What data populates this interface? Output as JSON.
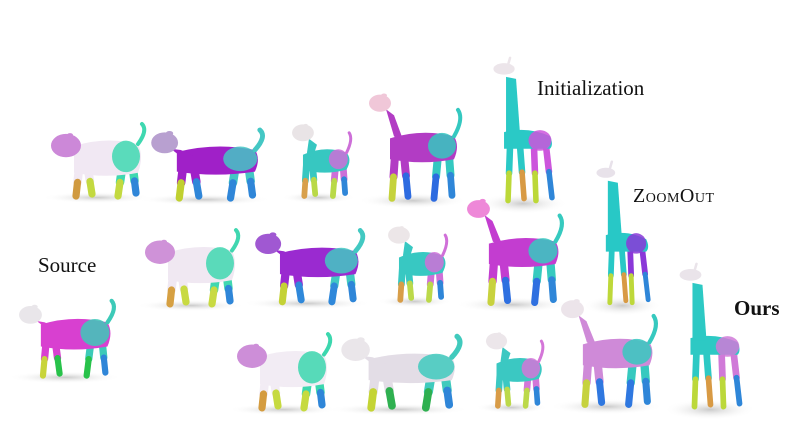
{
  "labels": {
    "source": "Source",
    "initialization": "Initialization",
    "zoomout": "ZoomOut",
    "ours": "Ours"
  },
  "colors": {
    "background": "#ffffff",
    "text": "#111111",
    "shadow": "#c9c9c9"
  },
  "rows": [
    {
      "method_label": "initialization",
      "shapes": [
        {
          "animal": "pig",
          "palette": [
            "#cc88d8",
            "#f1e8f3",
            "#3fd8b0",
            "#c3d940",
            "#d09a40"
          ]
        },
        {
          "animal": "cow",
          "palette": [
            "#b8a0d0",
            "#a020c8",
            "#44c7c4",
            "#2f86d8",
            "#c0d030"
          ]
        },
        {
          "animal": "dog",
          "palette": [
            "#e9e4e6",
            "#37c7c1",
            "#cd6fd8",
            "#b9d948",
            "#d8a04b"
          ]
        },
        {
          "animal": "horse",
          "palette": [
            "#f0c7d8",
            "#b23cc4",
            "#34c8c0",
            "#2d6be0",
            "#c5d23c"
          ]
        },
        {
          "animal": "giraffe",
          "palette": [
            "#ece5ea",
            "#2ac9c6",
            "#cc55dc",
            "#bcd838",
            "#d89a44"
          ]
        }
      ]
    },
    {
      "method_label": "zoomout",
      "shapes": [
        {
          "animal": "pig",
          "palette": [
            "#cf92d8",
            "#f0e8f2",
            "#40d7b0",
            "#c8da42",
            "#d6a042"
          ]
        },
        {
          "animal": "cow",
          "palette": [
            "#a058d2",
            "#9a2ad0",
            "#42c9c2",
            "#2f88da",
            "#c4d236"
          ]
        },
        {
          "animal": "dog",
          "palette": [
            "#ece6e8",
            "#38c8c2",
            "#d070d8",
            "#bcd94a",
            "#d89e48"
          ]
        },
        {
          "animal": "horse",
          "palette": [
            "#ee88d8",
            "#c33dd0",
            "#36cabf",
            "#2f70e0",
            "#c8d23e"
          ]
        },
        {
          "animal": "giraffe",
          "palette": [
            "#e8e2ea",
            "#28c8c6",
            "#8a38d8",
            "#bed83a",
            "#d89a44"
          ]
        }
      ]
    },
    {
      "method_label": "ours",
      "shapes": [
        {
          "animal": "pig",
          "palette": [
            "#cd8ed8",
            "#f2ecf4",
            "#3cd7ae",
            "#c6da40",
            "#d49c40"
          ]
        },
        {
          "animal": "cow",
          "palette": [
            "#eae6ea",
            "#e3dde6",
            "#40cabd",
            "#2fb050",
            "#c4d434"
          ]
        },
        {
          "animal": "dog",
          "palette": [
            "#ece6ea",
            "#3bc8c2",
            "#d476d8",
            "#bcd94a",
            "#d89c48"
          ]
        },
        {
          "animal": "horse",
          "palette": [
            "#ece4ea",
            "#cf8ad8",
            "#36c9bf",
            "#2f78e0",
            "#c6d23e"
          ]
        },
        {
          "animal": "giraffe",
          "palette": [
            "#eae4ea",
            "#2dc9c4",
            "#d07ad8",
            "#bcd83a",
            "#d89a44"
          ]
        }
      ]
    }
  ],
  "source_shape": {
    "animal": "cow",
    "palette": [
      "#e9e6ea",
      "#d840d0",
      "#3dcab8",
      "#28c24a",
      "#c8d43a"
    ]
  }
}
